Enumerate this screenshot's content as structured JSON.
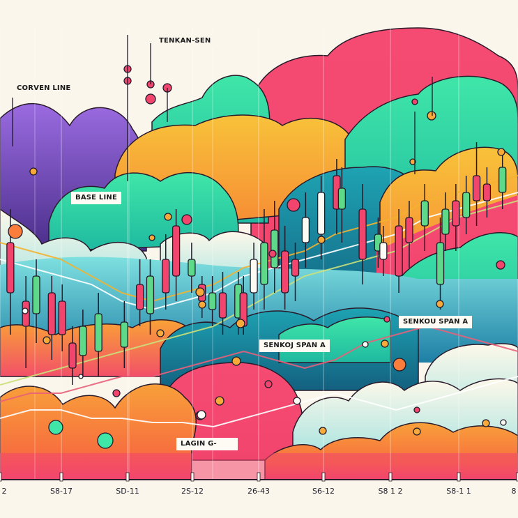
{
  "chart_data": {
    "type": "candlestick",
    "title": "",
    "xlabel": "",
    "ylabel": "",
    "grid": true,
    "x_tick_labels": [
      "2",
      "S8-17",
      "SD-11",
      "2S-12",
      "26-43",
      "S6-12",
      "S8 1 2",
      "S8-1 1",
      "8"
    ],
    "annotations": [
      {
        "id": "corven-line",
        "text": "CORVEN LINE"
      },
      {
        "id": "tenkan-sen",
        "text": "TENKAN-SEN"
      },
      {
        "id": "base-line",
        "text": "BASE LINE"
      },
      {
        "id": "senkou-span-a-1",
        "text": "SENKOJ SPAN A"
      },
      {
        "id": "senkou-span-a-2",
        "text": "SENKOU SPAN A"
      },
      {
        "id": "lagging",
        "text": "LAGIN G-"
      }
    ],
    "y_range": [
      0,
      100
    ],
    "candles": [
      {
        "x": 0.02,
        "open": 52,
        "close": 40,
        "high": 60,
        "low": 30,
        "color": "bearish"
      },
      {
        "x": 0.05,
        "open": 38,
        "close": 32,
        "high": 44,
        "low": 22,
        "color": "bearish"
      },
      {
        "x": 0.07,
        "open": 44,
        "close": 35,
        "high": 48,
        "low": 28,
        "color": "bullish"
      },
      {
        "x": 0.1,
        "open": 40,
        "close": 30,
        "high": 44,
        "low": 24,
        "color": "bearish"
      },
      {
        "x": 0.12,
        "open": 38,
        "close": 30,
        "high": 42,
        "low": 26,
        "color": "bearish"
      },
      {
        "x": 0.14,
        "open": 28,
        "close": 22,
        "high": 32,
        "low": 18,
        "color": "bearish"
      },
      {
        "x": 0.16,
        "open": 32,
        "close": 25,
        "high": 36,
        "low": 20,
        "color": "bullish"
      },
      {
        "x": 0.19,
        "open": 35,
        "close": 26,
        "high": 40,
        "low": 20,
        "color": "bullish"
      },
      {
        "x": 0.24,
        "open": 33,
        "close": 27,
        "high": 38,
        "low": 22,
        "color": "bullish"
      },
      {
        "x": 0.27,
        "open": 42,
        "close": 36,
        "high": 48,
        "low": 32,
        "color": "bearish"
      },
      {
        "x": 0.29,
        "open": 44,
        "close": 35,
        "high": 48,
        "low": 30,
        "color": "bullish"
      },
      {
        "x": 0.32,
        "open": 48,
        "close": 40,
        "high": 54,
        "low": 36,
        "color": "bearish"
      },
      {
        "x": 0.34,
        "open": 56,
        "close": 44,
        "high": 60,
        "low": 38,
        "color": "bearish"
      },
      {
        "x": 0.37,
        "open": 48,
        "close": 44,
        "high": 52,
        "low": 40,
        "color": "bullish"
      },
      {
        "x": 0.39,
        "open": 42,
        "close": 38,
        "high": 44,
        "low": 34,
        "color": "bearish"
      },
      {
        "x": 0.41,
        "open": 40,
        "close": 36,
        "high": 44,
        "low": 32,
        "color": "bullish"
      },
      {
        "x": 0.43,
        "open": 40,
        "close": 34,
        "high": 45,
        "low": 30,
        "color": "bearish"
      },
      {
        "x": 0.46,
        "open": 42,
        "close": 34,
        "high": 45,
        "low": 30,
        "color": "bullish"
      },
      {
        "x": 0.47,
        "open": 40,
        "close": 32,
        "high": 44,
        "low": 30,
        "color": "bearish"
      },
      {
        "x": 0.49,
        "open": 48,
        "close": 40,
        "high": 52,
        "low": 36,
        "color": "neutral"
      },
      {
        "x": 0.51,
        "open": 52,
        "close": 42,
        "high": 60,
        "low": 36,
        "color": "bullish"
      },
      {
        "x": 0.53,
        "open": 55,
        "close": 46,
        "high": 62,
        "low": 40,
        "color": "bullish"
      },
      {
        "x": 0.55,
        "open": 50,
        "close": 40,
        "high": 56,
        "low": 36,
        "color": "bearish"
      },
      {
        "x": 0.57,
        "open": 48,
        "close": 44,
        "high": 52,
        "low": 38,
        "color": "bearish"
      },
      {
        "x": 0.59,
        "open": 58,
        "close": 52,
        "high": 64,
        "low": 46,
        "color": "neutral"
      },
      {
        "x": 0.62,
        "open": 64,
        "close": 54,
        "high": 68,
        "low": 48,
        "color": "neutral"
      },
      {
        "x": 0.65,
        "open": 68,
        "close": 60,
        "high": 72,
        "low": 54,
        "color": "bearish"
      },
      {
        "x": 0.66,
        "open": 65,
        "close": 60,
        "high": 70,
        "low": 52,
        "color": "bullish"
      },
      {
        "x": 0.7,
        "open": 60,
        "close": 48,
        "high": 66,
        "low": 42,
        "color": "bearish"
      },
      {
        "x": 0.73,
        "open": 54,
        "close": 50,
        "high": 58,
        "low": 46,
        "color": "bullish"
      },
      {
        "x": 0.74,
        "open": 52,
        "close": 48,
        "high": 56,
        "low": 44,
        "color": "neutral"
      },
      {
        "x": 0.77,
        "open": 56,
        "close": 44,
        "high": 60,
        "low": 40,
        "color": "bearish"
      },
      {
        "x": 0.79,
        "open": 58,
        "close": 52,
        "high": 62,
        "low": 46,
        "color": "bearish"
      },
      {
        "x": 0.82,
        "open": 62,
        "close": 56,
        "high": 66,
        "low": 50,
        "color": "bullish"
      },
      {
        "x": 0.85,
        "open": 52,
        "close": 42,
        "high": 58,
        "low": 36,
        "color": "bullish"
      },
      {
        "x": 0.86,
        "open": 60,
        "close": 54,
        "high": 64,
        "low": 50,
        "color": "bullish"
      },
      {
        "x": 0.88,
        "open": 62,
        "close": 56,
        "high": 66,
        "low": 50,
        "color": "bearish"
      },
      {
        "x": 0.9,
        "open": 64,
        "close": 58,
        "high": 68,
        "low": 54,
        "color": "bullish"
      },
      {
        "x": 0.92,
        "open": 68,
        "close": 62,
        "high": 76,
        "low": 56,
        "color": "bearish"
      },
      {
        "x": 0.94,
        "open": 66,
        "close": 62,
        "high": 70,
        "low": 58,
        "color": "bearish"
      },
      {
        "x": 0.97,
        "open": 70,
        "close": 64,
        "high": 74,
        "low": 60,
        "color": "bullish"
      }
    ],
    "series": [
      {
        "name": "conversion-line",
        "color": "#f2b230",
        "values": [
          52,
          50,
          48,
          44,
          40,
          38,
          40,
          42,
          46,
          48,
          50,
          54,
          56,
          58,
          62,
          64,
          66,
          68
        ]
      },
      {
        "name": "base-line",
        "color": "#ffffff",
        "values": [
          48,
          46,
          44,
          42,
          38,
          36,
          38,
          40,
          44,
          46,
          48,
          50,
          52,
          54,
          58,
          60,
          62,
          64
        ]
      },
      {
        "name": "senkou-span-a",
        "color": "#cbe07a",
        "values": [
          18,
          20,
          22,
          24,
          26,
          28,
          30,
          32,
          36,
          40,
          44,
          46,
          48,
          50,
          54,
          58,
          60,
          62
        ]
      },
      {
        "name": "senkou-span-b",
        "color": "#e8607a",
        "values": [
          14,
          16,
          16,
          18,
          20,
          20,
          22,
          24,
          26,
          24,
          22,
          24,
          28,
          30,
          32,
          30,
          28,
          26
        ]
      },
      {
        "name": "lagging-span",
        "color": "#ffffff",
        "values": [
          10,
          12,
          12,
          10,
          10,
          9,
          9,
          8,
          10,
          12,
          14,
          16,
          14,
          12,
          14,
          16,
          18,
          20
        ]
      }
    ],
    "colors": {
      "bullish": "#5ed98a",
      "bearish": "#f2456e",
      "neutral": "#fdfbf3",
      "cloud_purple": "#8b5fd6",
      "cloud_green": "#3fe6a8",
      "cloud_pink": "#f2456e",
      "cloud_orange": "#f7a93a",
      "cloud_teal": "#1e9ab0",
      "cloud_coral": "#fb7d3b",
      "background": "#faf6ec"
    }
  }
}
